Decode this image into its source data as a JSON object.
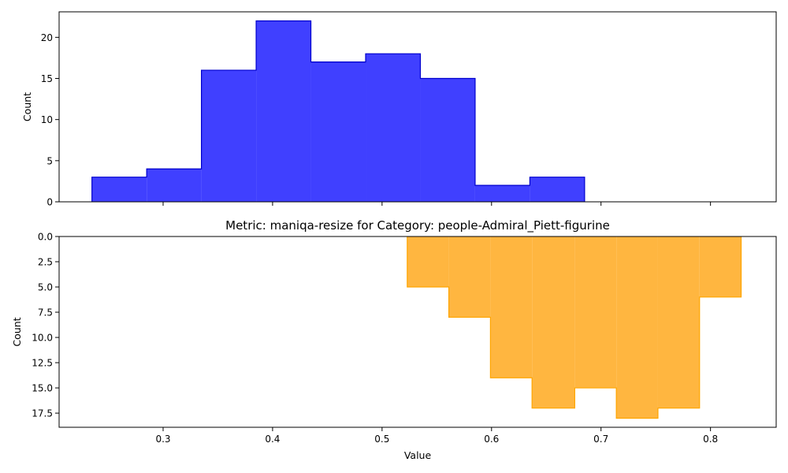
{
  "chart_data": [
    {
      "type": "histogram",
      "bins": [
        {
          "x0": 0.235,
          "x1": 0.285,
          "count": 3
        },
        {
          "x0": 0.285,
          "x1": 0.335,
          "count": 4
        },
        {
          "x0": 0.335,
          "x1": 0.385,
          "count": 16
        },
        {
          "x0": 0.385,
          "x1": 0.435,
          "count": 22
        },
        {
          "x0": 0.435,
          "x1": 0.485,
          "count": 17
        },
        {
          "x0": 0.485,
          "x1": 0.535,
          "count": 18
        },
        {
          "x0": 0.535,
          "x1": 0.585,
          "count": 15
        },
        {
          "x0": 0.585,
          "x1": 0.635,
          "count": 2
        },
        {
          "x0": 0.635,
          "x1": 0.685,
          "count": 3
        }
      ],
      "title": "",
      "xlabel": "",
      "ylabel": "Count",
      "xlim": [
        0.205,
        0.86
      ],
      "ylim": [
        0,
        23.1
      ],
      "xticks": [
        0.3,
        0.4,
        0.5,
        0.6,
        0.7,
        0.8
      ],
      "xtick_labels_shown": false,
      "yticks": [
        0,
        5,
        10,
        15,
        20
      ],
      "ytick_labels": [
        "0",
        "5",
        "10",
        "15",
        "20"
      ],
      "y_inverted": false,
      "fill_color": "#4040ff",
      "edge_color": "#0000cd",
      "grid": false
    },
    {
      "type": "histogram",
      "bins": [
        {
          "x0": 0.523,
          "x1": 0.561,
          "count": 5
        },
        {
          "x0": 0.561,
          "x1": 0.599,
          "count": 8
        },
        {
          "x0": 0.599,
          "x1": 0.637,
          "count": 14
        },
        {
          "x0": 0.637,
          "x1": 0.676,
          "count": 17
        },
        {
          "x0": 0.676,
          "x1": 0.714,
          "count": 15
        },
        {
          "x0": 0.714,
          "x1": 0.752,
          "count": 18
        },
        {
          "x0": 0.752,
          "x1": 0.79,
          "count": 17
        },
        {
          "x0": 0.79,
          "x1": 0.828,
          "count": 6
        }
      ],
      "title": "Metric: maniqa-resize for Category: people-Admiral_Piett-figurine",
      "xlabel": "Value",
      "ylabel": "Count",
      "xlim": [
        0.205,
        0.86
      ],
      "ylim": [
        0,
        18.9
      ],
      "xticks": [
        0.3,
        0.4,
        0.5,
        0.6,
        0.7,
        0.8
      ],
      "xtick_labels": [
        "0.3",
        "0.4",
        "0.5",
        "0.6",
        "0.7",
        "0.8"
      ],
      "yticks": [
        0,
        2.5,
        5,
        7.5,
        10,
        12.5,
        15,
        17.5
      ],
      "ytick_labels": [
        "0.0",
        "2.5",
        "5.0",
        "7.5",
        "10.0",
        "12.5",
        "15.0",
        "17.5"
      ],
      "y_inverted": true,
      "fill_color": "#ffb640",
      "edge_color": "#ffa500",
      "grid": false
    }
  ]
}
